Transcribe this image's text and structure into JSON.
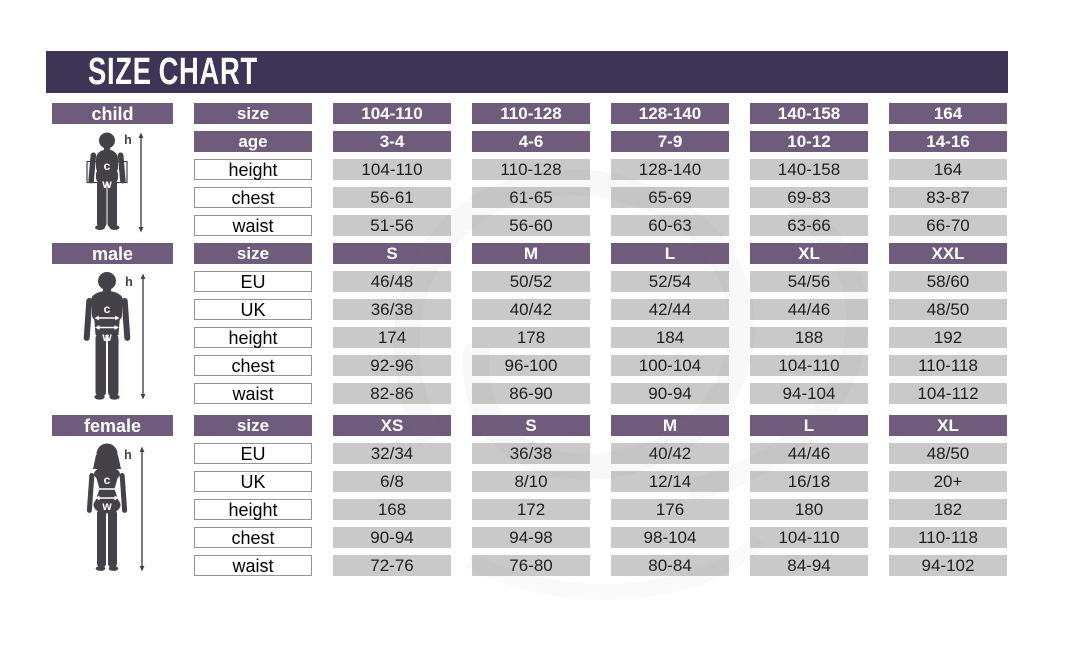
{
  "title": "SIZE CHART",
  "figure_labels": {
    "height": "h",
    "chest": "c",
    "waist": "w"
  },
  "colors": {
    "title_bar": "#3e3456",
    "header_cell": "#6f5b7b",
    "data_cell": "#c9c9c9",
    "figure": "#454149"
  },
  "sections": [
    {
      "id": "child",
      "label": "child",
      "rows": [
        {
          "label": "size",
          "style": "purple",
          "values": [
            "104-110",
            "110-128",
            "128-140",
            "140-158",
            "164"
          ]
        },
        {
          "label": "age",
          "style": "purple",
          "values": [
            "3-4",
            "4-6",
            "7-9",
            "10-12",
            "14-16"
          ]
        },
        {
          "label": "height",
          "style": "plain",
          "values": [
            "104-110",
            "110-128",
            "128-140",
            "140-158",
            "164"
          ]
        },
        {
          "label": "chest",
          "style": "plain",
          "values": [
            "56-61",
            "61-65",
            "65-69",
            "69-83",
            "83-87"
          ]
        },
        {
          "label": "waist",
          "style": "plain",
          "values": [
            "51-56",
            "56-60",
            "60-63",
            "63-66",
            "66-70"
          ]
        }
      ]
    },
    {
      "id": "male",
      "label": "male",
      "rows": [
        {
          "label": "size",
          "style": "purple",
          "values": [
            "S",
            "M",
            "L",
            "XL",
            "XXL"
          ]
        },
        {
          "label": "EU",
          "style": "plain",
          "values": [
            "46/48",
            "50/52",
            "52/54",
            "54/56",
            "58/60"
          ]
        },
        {
          "label": "UK",
          "style": "plain",
          "values": [
            "36/38",
            "40/42",
            "42/44",
            "44/46",
            "48/50"
          ]
        },
        {
          "label": "height",
          "style": "plain",
          "values": [
            "174",
            "178",
            "184",
            "188",
            "192"
          ]
        },
        {
          "label": "chest",
          "style": "plain",
          "values": [
            "92-96",
            "96-100",
            "100-104",
            "104-110",
            "110-118"
          ]
        },
        {
          "label": "waist",
          "style": "plain",
          "values": [
            "82-86",
            "86-90",
            "90-94",
            "94-104",
            "104-112"
          ]
        }
      ]
    },
    {
      "id": "female",
      "label": "female",
      "rows": [
        {
          "label": "size",
          "style": "purple",
          "values": [
            "XS",
            "S",
            "M",
            "L",
            "XL"
          ]
        },
        {
          "label": "EU",
          "style": "plain",
          "values": [
            "32/34",
            "36/38",
            "40/42",
            "44/46",
            "48/50"
          ]
        },
        {
          "label": "UK",
          "style": "plain",
          "values": [
            "6/8",
            "8/10",
            "12/14",
            "16/18",
            "20+"
          ]
        },
        {
          "label": "height",
          "style": "plain",
          "values": [
            "168",
            "172",
            "176",
            "180",
            "182"
          ]
        },
        {
          "label": "chest",
          "style": "plain",
          "values": [
            "90-94",
            "94-98",
            "98-104",
            "104-110",
            "110-118"
          ]
        },
        {
          "label": "waist",
          "style": "plain",
          "values": [
            "72-76",
            "76-80",
            "80-84",
            "84-94",
            "94-102"
          ]
        }
      ]
    }
  ]
}
